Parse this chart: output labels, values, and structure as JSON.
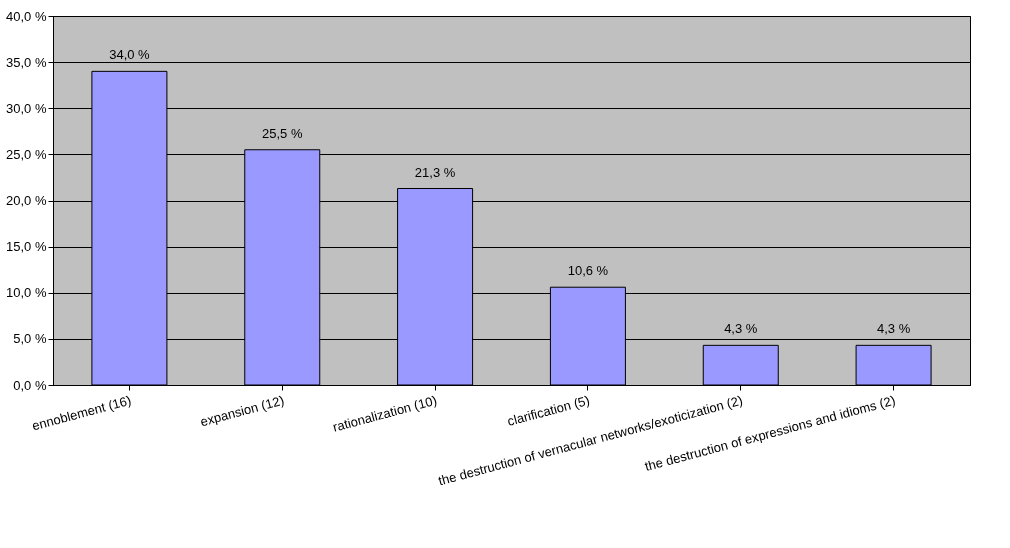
{
  "chart_data": {
    "type": "bar",
    "categories": [
      "ennoblement (16)",
      "expansion (12)",
      "rationalization (10)",
      "clarification (5)",
      "the destruction of vernacular networks/exoticization (2)",
      "the destruction of expressions and idioms (2)"
    ],
    "values": [
      34.0,
      25.5,
      21.3,
      10.6,
      4.3,
      4.3
    ],
    "value_labels": [
      "34,0 %",
      "25,5 %",
      "21,3 %",
      "10,6 %",
      "4,3 %",
      "4,3 %"
    ],
    "color": "#9999ff",
    "ylim": [
      0,
      40
    ],
    "yticks": [
      {
        "value": 0,
        "label": "0,0 %"
      },
      {
        "value": 5,
        "label": "5,0 %"
      },
      {
        "value": 10,
        "label": "10,0 %"
      },
      {
        "value": 15,
        "label": "15,0 %"
      },
      {
        "value": 20,
        "label": "20,0 %"
      },
      {
        "value": 25,
        "label": "25,0 %"
      },
      {
        "value": 30,
        "label": "30,0 %"
      },
      {
        "value": 35,
        "label": "35,0 %"
      },
      {
        "value": 40,
        "label": "40,0 %"
      }
    ],
    "grid": "y"
  }
}
